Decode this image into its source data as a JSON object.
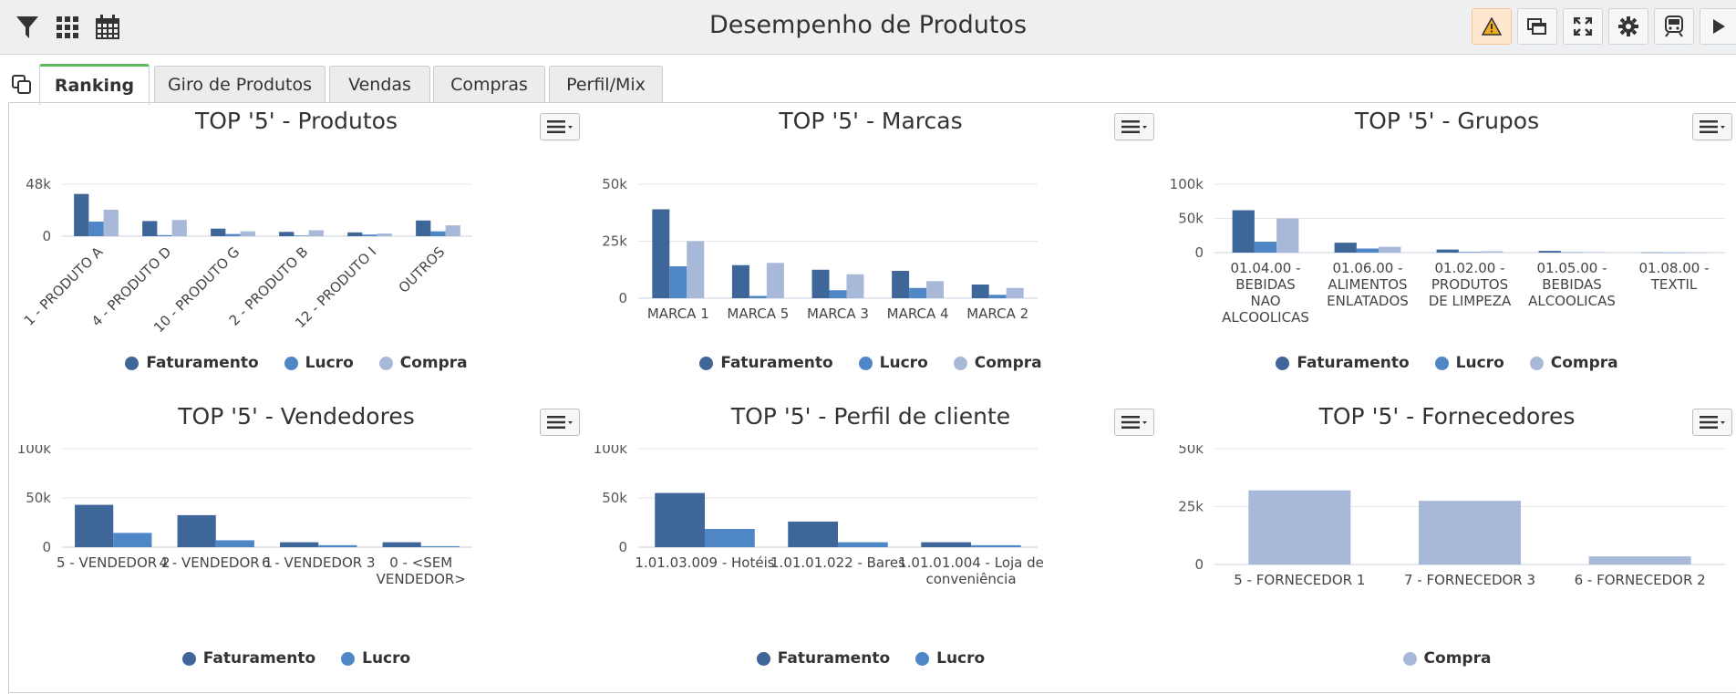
{
  "header": {
    "title": "Desempenho de Produtos",
    "left_icons": [
      "filter-icon",
      "grid-icon",
      "calendar-icon"
    ],
    "right_buttons": [
      "warning-icon",
      "windows-icon",
      "fullscreen-icon",
      "gear-icon",
      "train-icon",
      "play-icon"
    ]
  },
  "tabs": [
    {
      "label": "Ranking",
      "active": true
    },
    {
      "label": "Giro de Produtos",
      "active": false
    },
    {
      "label": "Vendas",
      "active": false
    },
    {
      "label": "Compras",
      "active": false
    },
    {
      "label": "Perfil/Mix",
      "active": false
    }
  ],
  "colors": {
    "faturamento": "#3f6699",
    "lucro": "#4f86c6",
    "compra": "#a8b8d8"
  },
  "legend_labels": {
    "faturamento": "Faturamento",
    "lucro": "Lucro",
    "compra": "Compra"
  },
  "chart_data": [
    {
      "id": "produtos",
      "type": "bar",
      "title": "TOP '5' - Produtos",
      "categories": [
        "1 - PRODUTO A",
        "4 - PRODUTO D",
        "10 - PRODUTO G",
        "2 - PRODUTO B",
        "12 - PRODUTO I",
        "OUTROS"
      ],
      "rotated_labels": true,
      "yticks": [
        {
          "value": 0,
          "label": "0"
        },
        {
          "value": 48000,
          "label": "48k"
        }
      ],
      "ylim": [
        0,
        48000
      ],
      "series": [
        {
          "name": "Faturamento",
          "values": [
            39000,
            14000,
            7000,
            4000,
            3500,
            14500
          ]
        },
        {
          "name": "Lucro",
          "values": [
            13500,
            1000,
            2000,
            600,
            1500,
            4500
          ]
        },
        {
          "name": "Compra",
          "values": [
            24500,
            15000,
            4500,
            5500,
            2500,
            10000
          ]
        }
      ]
    },
    {
      "id": "marcas",
      "type": "bar",
      "title": "TOP '5' - Marcas",
      "categories": [
        "MARCA 1",
        "MARCA 5",
        "MARCA 3",
        "MARCA 4",
        "MARCA 2"
      ],
      "rotated_labels": false,
      "yticks": [
        {
          "value": 0,
          "label": "0"
        },
        {
          "value": 25000,
          "label": "25k"
        },
        {
          "value": 50000,
          "label": "50k"
        }
      ],
      "ylim": [
        0,
        50000
      ],
      "series": [
        {
          "name": "Faturamento",
          "values": [
            39000,
            14500,
            12500,
            12000,
            6000
          ]
        },
        {
          "name": "Lucro",
          "values": [
            14000,
            1000,
            3500,
            4500,
            1500
          ]
        },
        {
          "name": "Compra",
          "values": [
            25000,
            15500,
            10500,
            7500,
            4500
          ]
        }
      ]
    },
    {
      "id": "grupos",
      "type": "bar",
      "title": "TOP '5' - Grupos",
      "categories": [
        [
          "01.04.00 -",
          "BEBIDAS",
          "NAO",
          "ALCOOLICAS"
        ],
        [
          "01.06.00 -",
          "ALIMENTOS",
          "ENLATADOS"
        ],
        [
          "01.02.00 -",
          "PRODUTOS",
          "DE LIMPEZA"
        ],
        [
          "01.05.00 -",
          "BEBIDAS",
          "ALCOOLICAS"
        ],
        [
          "01.08.00 -",
          "TEXTIL"
        ]
      ],
      "rotated_labels": false,
      "yticks": [
        {
          "value": 0,
          "label": "0"
        },
        {
          "value": 50000,
          "label": "50k"
        },
        {
          "value": 100000,
          "label": "100k"
        }
      ],
      "ylim": [
        0,
        100000
      ],
      "series": [
        {
          "name": "Faturamento",
          "values": [
            62000,
            14500,
            4500,
            2500,
            300
          ]
        },
        {
          "name": "Lucro",
          "values": [
            16000,
            6000,
            1000,
            500,
            100
          ]
        },
        {
          "name": "Compra",
          "values": [
            50000,
            8500,
            2000,
            800,
            100
          ]
        }
      ]
    },
    {
      "id": "vendedores",
      "type": "bar",
      "title": "TOP '5' - Vendedores",
      "categories": [
        [
          "5 - VENDEDOR 2"
        ],
        [
          "4 - VENDEDOR 1"
        ],
        [
          "6 - VENDEDOR 3"
        ],
        [
          "0 - <SEM",
          "VENDEDOR>"
        ]
      ],
      "rotated_labels": false,
      "yticks": [
        {
          "value": 0,
          "label": "0"
        },
        {
          "value": 50000,
          "label": "50k"
        },
        {
          "value": 100000,
          "label": "100k"
        }
      ],
      "ylim": [
        0,
        100000
      ],
      "series": [
        {
          "name": "Faturamento",
          "values": [
            43000,
            32500,
            5000,
            5000
          ]
        },
        {
          "name": "Lucro",
          "values": [
            14500,
            7000,
            2000,
            1000
          ]
        }
      ]
    },
    {
      "id": "perfil",
      "type": "bar",
      "title": "TOP '5' - Perfil de cliente",
      "categories": [
        [
          "1.01.03.009 - Hotéis"
        ],
        [
          "1.01.01.022 - Bares"
        ],
        [
          "1.01.01.004 - Loja de",
          "conveniência"
        ]
      ],
      "rotated_labels": false,
      "yticks": [
        {
          "value": 0,
          "label": "0"
        },
        {
          "value": 50000,
          "label": "50k"
        },
        {
          "value": 100000,
          "label": "100k"
        }
      ],
      "ylim": [
        0,
        100000
      ],
      "series": [
        {
          "name": "Faturamento",
          "values": [
            55000,
            26000,
            5000
          ]
        },
        {
          "name": "Lucro",
          "values": [
            18500,
            5000,
            2000
          ]
        }
      ]
    },
    {
      "id": "fornecedores",
      "type": "bar",
      "title": "TOP '5' - Fornecedores",
      "categories": [
        [
          "5 - FORNECEDOR 1"
        ],
        [
          "7 - FORNECEDOR 3"
        ],
        [
          "6 - FORNECEDOR 2"
        ]
      ],
      "rotated_labels": false,
      "yticks": [
        {
          "value": 0,
          "label": "0"
        },
        {
          "value": 25000,
          "label": "25k"
        },
        {
          "value": 50000,
          "label": "50k"
        }
      ],
      "ylim": [
        0,
        50000
      ],
      "series": [
        {
          "name": "Compra",
          "values": [
            32000,
            27500,
            3500
          ]
        }
      ]
    }
  ]
}
